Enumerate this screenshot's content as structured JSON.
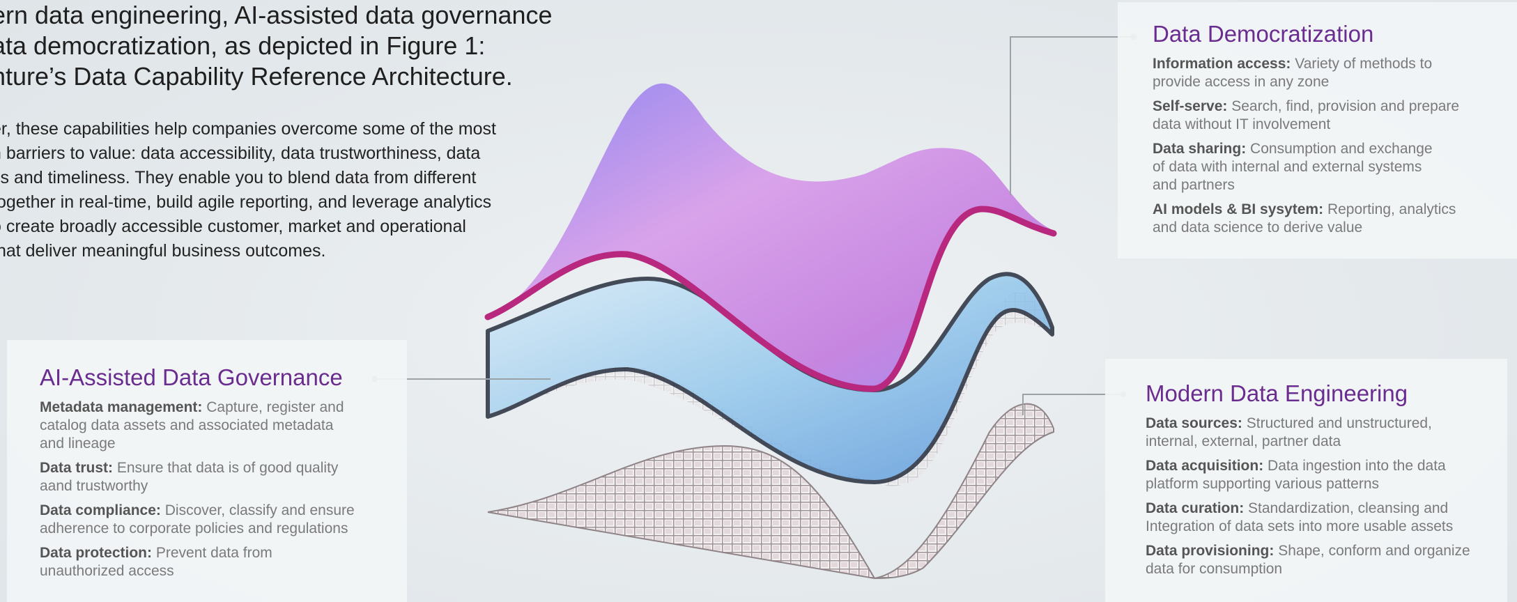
{
  "intro": {
    "heading_lines": [
      "ern data engineering, AI-assisted data governance",
      "ata democratization, as depicted in Figure 1:",
      "nture’s Data Capability Reference Architecture."
    ],
    "paragraph_lines": [
      "er, these capabilities help companies overcome some of the most",
      "n barriers to value: data accessibility, data trustworthiness, data",
      "ss and timeliness. They enable you to blend data from different",
      "together in real-time, build agile reporting, and leverage analytics",
      "o create broadly accessible customer, market and operational",
      "that deliver meaningful business outcomes."
    ]
  },
  "panels": {
    "democratization": {
      "title": "Data Democratization",
      "items": [
        {
          "term": "Information access:",
          "lines": [
            "Variety of methods to",
            "provide access in any zone"
          ]
        },
        {
          "term": "Self-serve:",
          "lines": [
            "Search, find, provision and prepare",
            "data without IT involvement"
          ]
        },
        {
          "term": "Data sharing:",
          "lines": [
            "Consumption and exchange",
            "of data with internal and external systems",
            "and partners"
          ]
        },
        {
          "term": "AI models & BI sysytem:",
          "lines": [
            "Reporting, analytics",
            "and data science to derive value"
          ]
        }
      ]
    },
    "governance": {
      "title": "AI-Assisted Data Governance",
      "items": [
        {
          "term": "Metadata management:",
          "lines": [
            "Capture, register and",
            "catalog data assets and associated metadata",
            "and lineage"
          ]
        },
        {
          "term": "Data trust:",
          "lines": [
            "Ensure that data is of good quality",
            "aand trustworthy"
          ]
        },
        {
          "term": "Data compliance:",
          "lines": [
            "Discover, classify and ensure",
            "adherence to corporate policies and regulations"
          ]
        },
        {
          "term": "Data protection:",
          "lines": [
            "Prevent data from",
            "unauthorized access"
          ]
        }
      ]
    },
    "engineering": {
      "title": "Modern Data Engineering",
      "items": [
        {
          "term": "Data sources:",
          "lines": [
            "Structured and unstructured,",
            "internal, external, partner data"
          ]
        },
        {
          "term": "Data acquisition:",
          "lines": [
            "Data ingestion into the data",
            "platform supporting various patterns"
          ]
        },
        {
          "term": "Data curation:",
          "lines": [
            "Standardization, cleansing and",
            "Integration of data sets into more usable assets"
          ]
        },
        {
          "term": "Data provisioning:",
          "lines": [
            "Shape, conform and organize",
            "data for consumption"
          ]
        }
      ]
    }
  },
  "colors": {
    "title_purple": "#6a2c8f",
    "layer_top": "#c98be0",
    "layer_middle": "#7fb6e4",
    "layer_grid": "#b9a3a8",
    "connector": "#9aa2a6"
  }
}
